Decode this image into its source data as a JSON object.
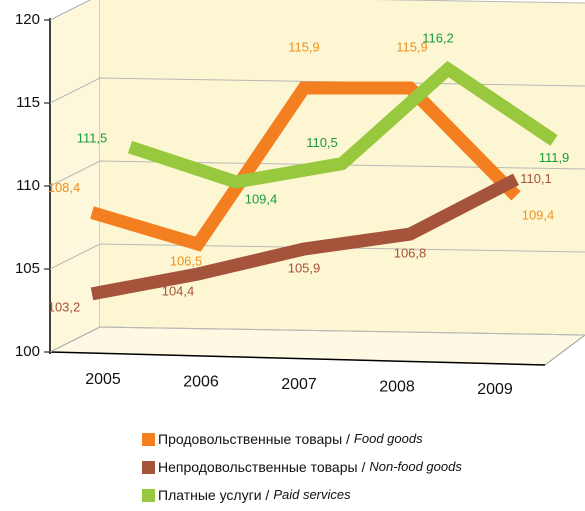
{
  "chart_data": {
    "type": "line",
    "categories": [
      "2005",
      "2006",
      "2007",
      "2008",
      "2009"
    ],
    "ylim": [
      100,
      120
    ],
    "yticks": [
      100,
      105,
      110,
      115,
      120
    ],
    "grid": true,
    "series": [
      {
        "name": "Продовольственные товары /",
        "name_en": "Food goods",
        "color": "#f47f20",
        "label_color": "#f0901e",
        "values": [
          108.4,
          106.5,
          115.9,
          115.9,
          109.4
        ],
        "value_labels": [
          "108,4",
          "106,5",
          "115,9",
          "115,9",
          "109,4"
        ]
      },
      {
        "name": "Непродовольственные товары /",
        "name_en": "Non-food goods",
        "color": "#a5533a",
        "label_color": "#a5533a",
        "values": [
          103.2,
          104.4,
          105.9,
          106.8,
          110.1
        ],
        "value_labels": [
          "103,2",
          "104,4",
          "105,9",
          "106,8",
          "110,1"
        ]
      },
      {
        "name": "Платные услуги /",
        "name_en": "Paid services",
        "color": "#98c83e",
        "label_color": "#1a9a3a",
        "values": [
          111.5,
          109.4,
          110.5,
          116.2,
          111.9
        ],
        "value_labels": [
          "111,5",
          "109,4",
          "110,5",
          "116,2",
          "111,9"
        ]
      }
    ]
  }
}
